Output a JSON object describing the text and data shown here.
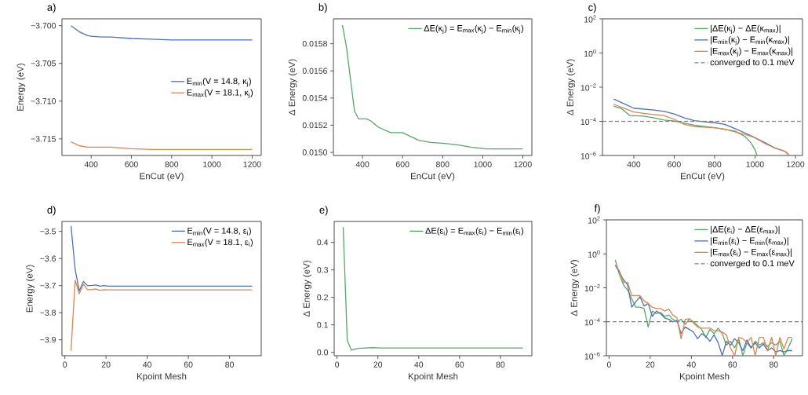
{
  "chart_data": [
    {
      "type": "line",
      "title": "a)",
      "xlabel": "EnCut (eV)",
      "ylabel": "Energy (eV)",
      "xlim": [
        255,
        1245
      ],
      "ylim": [
        -3.7172,
        -3.6991
      ],
      "xticks": [
        400,
        600,
        800,
        1000,
        1200
      ],
      "yticks": [
        {
          "value": -3.7,
          "label": "−3.700"
        },
        {
          "value": -3.705,
          "label": "−3.705"
        },
        {
          "value": -3.71,
          "label": "−3.710"
        },
        {
          "value": -3.715,
          "label": "−3.715"
        }
      ],
      "legend": "right",
      "x": [
        300,
        340,
        380,
        400,
        450,
        500,
        550,
        600,
        700,
        800,
        900,
        1000,
        1100,
        1200
      ],
      "series": [
        {
          "name": "E$_{min}$(V = 14.8, κ$_{j}$)",
          "color": "#4c72b0",
          "values": [
            -3.7,
            -3.7008,
            -3.7013,
            -3.7014,
            -3.7015,
            -3.7015,
            -3.7016,
            -3.7017,
            -3.7018,
            -3.7019,
            -3.7019,
            -3.7019,
            -3.7019,
            -3.7019
          ]
        },
        {
          "name": "E$_{max}$(V = 18.1, κ$_{j}$)",
          "color": "#dd8452",
          "values": [
            -3.7154,
            -3.7159,
            -3.7161,
            -3.7161,
            -3.7161,
            -3.7161,
            -3.7162,
            -3.7163,
            -3.7164,
            -3.7164,
            -3.7164,
            -3.7164,
            -3.7164,
            -3.7164
          ]
        }
      ]
    },
    {
      "type": "line",
      "title": "b)",
      "xlabel": "EnCut (eV)",
      "ylabel": "Δ Energy (eV)",
      "xlim": [
        255,
        1245
      ],
      "ylim": [
        0.014977,
        0.015983
      ],
      "xticks": [
        400,
        600,
        800,
        1000,
        1200
      ],
      "yticks": [
        {
          "value": 0.015,
          "label": "0.0150"
        },
        {
          "value": 0.0152,
          "label": "0.0152"
        },
        {
          "value": 0.0154,
          "label": "0.0154"
        },
        {
          "value": 0.0156,
          "label": "0.0156"
        },
        {
          "value": 0.0158,
          "label": "0.0158"
        }
      ],
      "legend": "top right",
      "x": [
        300,
        320,
        360,
        380,
        420,
        440,
        480,
        540,
        600,
        620,
        680,
        740,
        800,
        880,
        940,
        1020,
        1200
      ],
      "series": [
        {
          "name": "ΔE(κ$_{j}$) = E$_{max}$(κ$_{j}$) − E$_{min}$(κ$_{j}$)",
          "color": "#55a868",
          "values": [
            0.015937,
            0.015777,
            0.015305,
            0.015247,
            0.015247,
            0.015233,
            0.015185,
            0.015145,
            0.015145,
            0.015131,
            0.015089,
            0.015073,
            0.015067,
            0.015054,
            0.015039,
            0.015025,
            0.015025
          ]
        }
      ]
    },
    {
      "type": "line",
      "title": "c)",
      "xlabel": "EnCut (eV)",
      "ylabel": "Δ Energy (eV)",
      "log": "y",
      "xlim": [
        245,
        1235
      ],
      "ylim": [
        1e-06,
        100
      ],
      "xticks": [
        400,
        600,
        800,
        1000,
        1200
      ],
      "yticks": [
        {
          "value": 1e-06,
          "label": "10$^{−6}$"
        },
        {
          "value": 0.0001,
          "label": "10$^{−4}$"
        },
        {
          "value": 0.01,
          "label": "10$^{−2}$"
        },
        {
          "value": 1,
          "label": "10$^{0}$"
        },
        {
          "value": 100,
          "label": "10$^{2}$"
        }
      ],
      "legend": "top right",
      "ref_lines": [
        {
          "axis": "y",
          "value": 0.0001,
          "label": "converged to 0.1 meV",
          "color": "#808080",
          "line_style": "dashed"
        }
      ],
      "series": [
        {
          "name": "|ΔE(κ$_{j}$) − ΔE(κ$_{max}$)|",
          "color": "#55a868",
          "x": [
            300,
            340,
            380,
            450,
            500,
            550,
            600,
            650,
            700,
            800,
            900,
            950,
            980,
            1000,
            1010
          ],
          "values": [
            0.00078,
            0.00055,
            0.00022,
            0.0002,
            0.00016,
            0.00012,
            0.000105,
            7.8e-05,
            5.9e-05,
            4.2e-05,
            2.7e-05,
            1.3e-05,
            5.5e-06,
            2.2e-06,
            1e-06
          ]
        },
        {
          "name": "|E$_{min}$(κ$_{j}$) − E$_{min}$(κ$_{max}$)|",
          "color": "#4c72b0",
          "x": [
            300,
            350,
            400,
            500,
            550,
            600,
            650,
            700,
            750,
            800,
            850,
            900,
            950,
            1000,
            1050,
            1100,
            1150,
            1170
          ],
          "values": [
            0.002,
            0.0011,
            0.00059,
            0.00046,
            0.00038,
            0.00027,
            0.00016,
            0.00011,
            9.3e-05,
            8.3e-05,
            6.6e-05,
            3.8e-05,
            2.1e-05,
            1.1e-05,
            5.5e-06,
            2.7e-06,
            1.7e-06,
            1e-06
          ]
        },
        {
          "name": "|E$_{max}$(κ$_{j}$) − E$_{max}$(κ$_{max}$)|",
          "color": "#dd8452",
          "x": [
            300,
            350,
            400,
            450,
            500,
            550,
            600,
            650,
            700,
            800,
            850,
            900,
            950,
            1000,
            1050,
            1100,
            1150,
            1170
          ],
          "values": [
            0.001,
            0.0006,
            0.00035,
            0.00029,
            0.00025,
            0.00022,
            0.00013,
            6.6e-05,
            4.9e-05,
            4.2e-05,
            3.5e-05,
            2.4e-05,
            1.7e-05,
            1.1e-05,
            4.9e-06,
            2.7e-06,
            1.7e-06,
            1e-06
          ]
        }
      ]
    },
    {
      "type": "line",
      "title": "d)",
      "xlabel": "Kpoint Mesh",
      "ylabel": "Energy (eV)",
      "xlim": [
        -1.4,
        95.4
      ],
      "ylim": [
        -3.959,
        -3.4633
      ],
      "xticks": [
        0,
        20,
        40,
        60,
        80
      ],
      "yticks": [
        {
          "value": -3.9,
          "label": "−3.9"
        },
        {
          "value": -3.8,
          "label": "−3.8"
        },
        {
          "value": -3.7,
          "label": "−3.7"
        },
        {
          "value": -3.6,
          "label": "−3.6"
        },
        {
          "value": -3.5,
          "label": "−3.5"
        }
      ],
      "legend": "top right",
      "x": [
        3,
        5,
        7,
        9,
        11,
        13,
        15,
        17,
        19,
        21,
        25,
        31,
        41,
        51,
        61,
        71,
        81,
        91
      ],
      "series": [
        {
          "name": "E$_{min}$(V = 14.8, ε$_{i}$)",
          "color": "#4c72b0",
          "values": [
            -3.48,
            -3.64,
            -3.72,
            -3.685,
            -3.7,
            -3.7,
            -3.698,
            -3.702,
            -3.7,
            -3.702,
            -3.702,
            -3.702,
            -3.702,
            -3.702,
            -3.702,
            -3.702,
            -3.702,
            -3.702
          ]
        },
        {
          "name": "E$_{max}$(V = 18.1, ε$_{i}$)",
          "color": "#dd8452",
          "values": [
            -3.94,
            -3.68,
            -3.73,
            -3.695,
            -3.715,
            -3.715,
            -3.712,
            -3.718,
            -3.715,
            -3.716,
            -3.716,
            -3.716,
            -3.716,
            -3.716,
            -3.716,
            -3.716,
            -3.716,
            -3.716
          ]
        }
      ]
    },
    {
      "type": "line",
      "title": "e)",
      "xlabel": "Kpoint Mesh",
      "ylabel": "Δ Energy (eV)",
      "xlim": [
        -1.4,
        95.4
      ],
      "ylim": [
        -0.0124,
        0.476
      ],
      "xticks": [
        0,
        20,
        40,
        60,
        80
      ],
      "yticks": [
        {
          "value": 0,
          "label": "0.0"
        },
        {
          "value": 0.1,
          "label": "0.1"
        },
        {
          "value": 0.2,
          "label": "0.2"
        },
        {
          "value": 0.3,
          "label": "0.3"
        },
        {
          "value": 0.4,
          "label": "0.4"
        }
      ],
      "legend": "top right",
      "x": [
        3,
        5,
        7,
        9,
        11,
        13,
        17,
        21,
        31,
        41,
        51,
        61,
        71,
        81,
        91
      ],
      "series": [
        {
          "name": "ΔE(ε$_{i}$) = E$_{max}$(ε$_{i}$) − E$_{min}$(ε$_{i}$)",
          "color": "#55a868",
          "values": [
            0.455,
            0.043,
            0.008,
            0.012,
            0.015,
            0.015,
            0.017,
            0.016,
            0.016,
            0.016,
            0.016,
            0.016,
            0.016,
            0.016,
            0.016
          ]
        }
      ]
    },
    {
      "type": "line",
      "title": "f)",
      "xlabel": "Kpoint Mesh",
      "ylabel": "Δ Energy (eV)",
      "log": "y",
      "xlim": [
        -1.3,
        94
      ],
      "ylim": [
        1e-06,
        100
      ],
      "xticks": [
        0,
        20,
        40,
        60,
        80
      ],
      "yticks": [
        {
          "value": 1e-06,
          "label": "10$^{−6}$"
        },
        {
          "value": 0.0001,
          "label": "10$^{−4}$"
        },
        {
          "value": 0.01,
          "label": "10$^{−2}$"
        },
        {
          "value": 1,
          "label": "10$^{0}$"
        },
        {
          "value": 100,
          "label": "10$^{2}$"
        }
      ],
      "legend": "top right",
      "ref_lines": [
        {
          "axis": "y",
          "value": 0.0001,
          "label": "converged to 0.1 meV",
          "color": "#808080",
          "line_style": "dashed"
        }
      ],
      "x": [
        3,
        5,
        7,
        9,
        11,
        13,
        15,
        17,
        19,
        21,
        23,
        25,
        27,
        29,
        31,
        33,
        35,
        37,
        39,
        41,
        43,
        45,
        47,
        49,
        51,
        53,
        55,
        57,
        59,
        61,
        63,
        65,
        67,
        69,
        71,
        73,
        75,
        77,
        79,
        81,
        83,
        85,
        87,
        89
      ],
      "series": [
        {
          "name": "|ΔE(ε$_{i}$) − ΔE(ε$_{max}$)|",
          "color": "#55a868",
          "values": [
            0.44,
            0.062,
            0.015,
            0.0072,
            0.0023,
            0.00072,
            0.00072,
            0.0006,
            5e-05,
            0.00043,
            0.0003,
            0.00035,
            0.00021,
            0.00025,
            0.00014,
            0.0001,
            0.00014,
            7.1e-05,
            0.00014,
            0.0001,
            6e-05,
            3.5e-05,
            1.2e-05,
            3.5e-05,
            2e-05,
            4.2e-05,
            2e-05,
            4.2e-06,
            7.1e-06,
            2.9e-06,
            1e-05,
            1e-06,
            5.9e-06,
            2.9e-06,
            7.1e-06,
            4.2e-06,
            5.9e-06,
            3.5e-06,
            5.9e-06,
            4.2e-06,
            7.1e-06,
            1e-06,
            2.9e-06,
            1e-05
          ]
        },
        {
          "name": "|E$_{min}$(ε$_{i}$) − E$_{min}$(ε$_{max}$)|",
          "color": "#4c72b0",
          "values": [
            0.21,
            0.087,
            0.03,
            0.015,
            0.00072,
            0.0015,
            0.003,
            0.00085,
            0.0012,
            0.00021,
            0.00043,
            0.0003,
            0.00017,
            0.00014,
            0.0001,
            0.00012,
            2e-05,
            5e-05,
            3.5e-05,
            2.5e-05,
            1e-05,
            2e-05,
            1.4e-05,
            7.1e-06,
            1.7e-05,
            5.9e-06,
            1e-06,
            7.1e-06,
            4.2e-06,
            1e-05,
            5.9e-06,
            2e-06,
            8.5e-06,
            2.9e-06,
            5.9e-06,
            2.9e-06,
            4.9e-06,
            2e-06,
            2.9e-06,
            1.7e-06,
            2e-06,
            1.7e-06,
            2e-06,
            2e-06
          ]
        },
        {
          "name": "|E$_{max}$(ε$_{i}$) − E$_{max}$(ε$_{max}$)|",
          "color": "#dd8452",
          "values": [
            0.23,
            0.1,
            0.021,
            0.021,
            0.0035,
            0.0035,
            0.0035,
            0.0017,
            0.0012,
            0.00072,
            0.0006,
            0.0006,
            0.00043,
            0.00056,
            0.00025,
            0.00017,
            1e-05,
            0.00014,
            0.00015,
            8.5e-05,
            5e-05,
            4.2e-05,
            4.2e-05,
            4.2e-05,
            3e-05,
            3e-05,
            2.5e-05,
            1.7e-05,
            2.9e-06,
            1e-06,
            1.2e-05,
            1e-05,
            5.9e-06,
            1.2e-05,
            1e-06,
            1.2e-05,
            1.2e-05,
            2e-06,
            1.2e-05,
            1e-06,
            1.2e-05,
            2.5e-06,
            1.2e-05,
            1.2e-05
          ]
        }
      ]
    }
  ]
}
